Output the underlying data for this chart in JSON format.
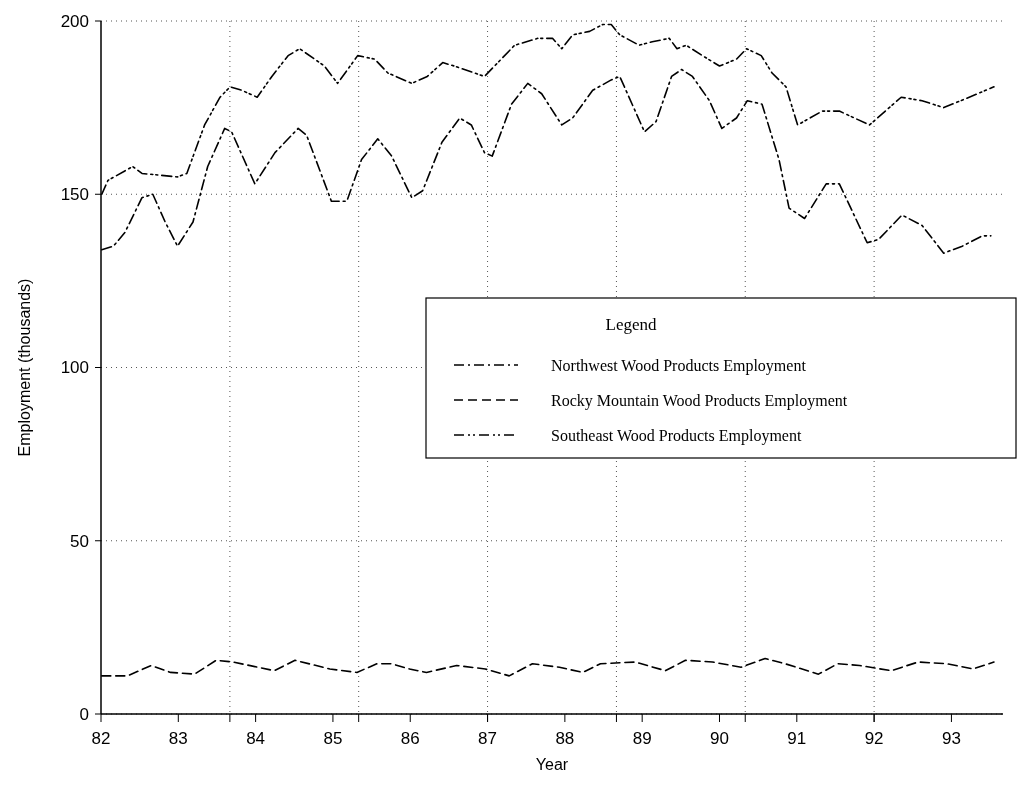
{
  "chart_data": {
    "type": "line",
    "xlabel": "Year",
    "ylabel": "Employment (thousands)",
    "legend_title": "Legend",
    "legend": "right",
    "grid": true,
    "xlim": [
      82,
      93.667
    ],
    "ylim": [
      0,
      200
    ],
    "yticks": [
      0,
      50,
      100,
      150,
      200
    ],
    "xticks": [
      82,
      83,
      84,
      85,
      86,
      87,
      88,
      89,
      90,
      91,
      92,
      93,
      {
        "value": 83.667,
        "label": null
      },
      {
        "value": 85.333,
        "label": null
      },
      {
        "value": 87,
        "label": null
      },
      {
        "value": 88.667,
        "label": null
      },
      {
        "value": 90.333,
        "label": null
      },
      {
        "value": 92,
        "label": null
      }
    ],
    "series": [
      {
        "name": "Northwest Wood Products Employment",
        "color": "#000000",
        "line_style": "dashdot",
        "x": [
          82.01,
          82.16,
          82.31,
          82.53,
          82.67,
          82.83,
          82.99,
          83.19,
          83.38,
          83.6,
          83.69,
          83.99,
          84.25,
          84.55,
          84.66,
          84.98,
          85.18,
          85.37,
          85.58,
          85.76,
          86.02,
          86.16,
          86.41,
          86.64,
          86.79,
          86.96,
          87.06,
          87.31,
          87.52,
          87.7,
          87.96,
          88.1,
          88.36,
          88.6,
          88.71,
          89.03,
          89.18,
          89.38,
          89.51,
          89.65,
          89.87,
          90.03,
          90.22,
          90.36,
          90.55,
          90.77,
          90.9,
          91.1,
          91.38,
          91.55,
          91.91,
          92.06,
          92.36,
          92.62,
          92.9,
          93.14,
          93.4,
          93.51
        ],
        "values": [
          134,
          135,
          139,
          149,
          150,
          142,
          135,
          142,
          158,
          169,
          168,
          153,
          162,
          169,
          167,
          148,
          148,
          160,
          166,
          161,
          149,
          151,
          165,
          172,
          170,
          162,
          161,
          176,
          182,
          179,
          170,
          172,
          180,
          183,
          184,
          168,
          171,
          184,
          186,
          184,
          177,
          169,
          172,
          177,
          176,
          160,
          146,
          143,
          153,
          153,
          136,
          137,
          144,
          141,
          133,
          135,
          138,
          138
        ]
      },
      {
        "name": "Rocky Mountain Wood Products Employment",
        "color": "#000000",
        "line_style": "dashed",
        "x": [
          82.01,
          82.34,
          82.65,
          82.9,
          83.21,
          83.49,
          83.71,
          84.24,
          84.51,
          84.96,
          85.31,
          85.57,
          85.76,
          85.99,
          86.21,
          86.6,
          86.97,
          87.28,
          87.58,
          87.93,
          88.23,
          88.46,
          88.91,
          89.3,
          89.56,
          89.91,
          90.28,
          90.59,
          90.85,
          91.28,
          91.53,
          91.81,
          92.22,
          92.57,
          92.94,
          93.28,
          93.55
        ],
        "values": [
          11,
          11,
          14,
          12,
          11.5,
          15.5,
          15,
          12.5,
          15.5,
          13,
          12,
          14.5,
          14.5,
          13,
          12,
          14,
          13,
          11,
          14.5,
          13.5,
          12,
          14.5,
          15,
          12.5,
          15.5,
          15,
          13.5,
          16,
          14.5,
          11.5,
          14.5,
          14,
          12.5,
          15,
          14.5,
          13,
          15
        ]
      },
      {
        "name": "Southeast Wood Products Employment",
        "color": "#000000",
        "line_style": "dashdotdot",
        "x": [
          82.01,
          82.09,
          82.41,
          82.53,
          82.99,
          83.11,
          83.34,
          83.54,
          83.67,
          83.82,
          84.02,
          84.21,
          84.42,
          84.57,
          84.89,
          85.06,
          85.32,
          85.54,
          85.71,
          86.02,
          86.22,
          86.42,
          86.57,
          86.96,
          87.09,
          87.35,
          87.65,
          87.84,
          87.96,
          88.1,
          88.32,
          88.49,
          88.6,
          88.71,
          88.96,
          89.13,
          89.35,
          89.45,
          89.57,
          89.78,
          90,
          90.22,
          90.35,
          90.54,
          90.68,
          90.86,
          91.01,
          91.33,
          91.55,
          91.94,
          92.35,
          92.62,
          92.9,
          93.23,
          93.55
        ],
        "values": [
          150,
          154,
          158,
          156,
          155,
          156,
          170,
          178,
          181,
          180,
          178,
          184,
          190,
          192,
          187,
          182,
          190,
          189,
          185,
          182,
          184,
          188,
          187,
          184,
          187,
          193,
          195,
          195,
          192,
          196,
          197,
          199,
          199,
          196,
          193,
          194,
          195,
          192,
          193,
          190,
          187,
          189,
          192,
          190,
          185,
          181,
          170,
          174,
          174,
          170,
          178,
          177,
          175,
          178,
          181
        ]
      }
    ]
  }
}
